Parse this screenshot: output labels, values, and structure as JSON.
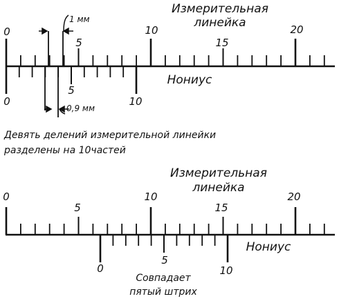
{
  "top": {
    "ruler_title": [
      "Измерительная",
      "линейка"
    ],
    "ruler_numbers": [
      "0",
      "5",
      "10",
      "15",
      "20"
    ],
    "nonius_label": "Нониус",
    "nonius_numbers": [
      "0",
      "5",
      "10"
    ],
    "dim_ruler": "1 мм",
    "dim_nonius": "0,9 мм",
    "caption": [
      "Девять делений измерительной линейки",
      "разделены на 10частей"
    ]
  },
  "bottom": {
    "ruler_title": [
      "Измерительная",
      "линейка"
    ],
    "ruler_numbers": [
      "0",
      "5",
      "10",
      "15",
      "20"
    ],
    "nonius_label": "Нониус",
    "nonius_numbers": [
      "0",
      "5",
      "10"
    ],
    "coincide_note": [
      "Совпадает",
      "пятый штрих"
    ]
  }
}
